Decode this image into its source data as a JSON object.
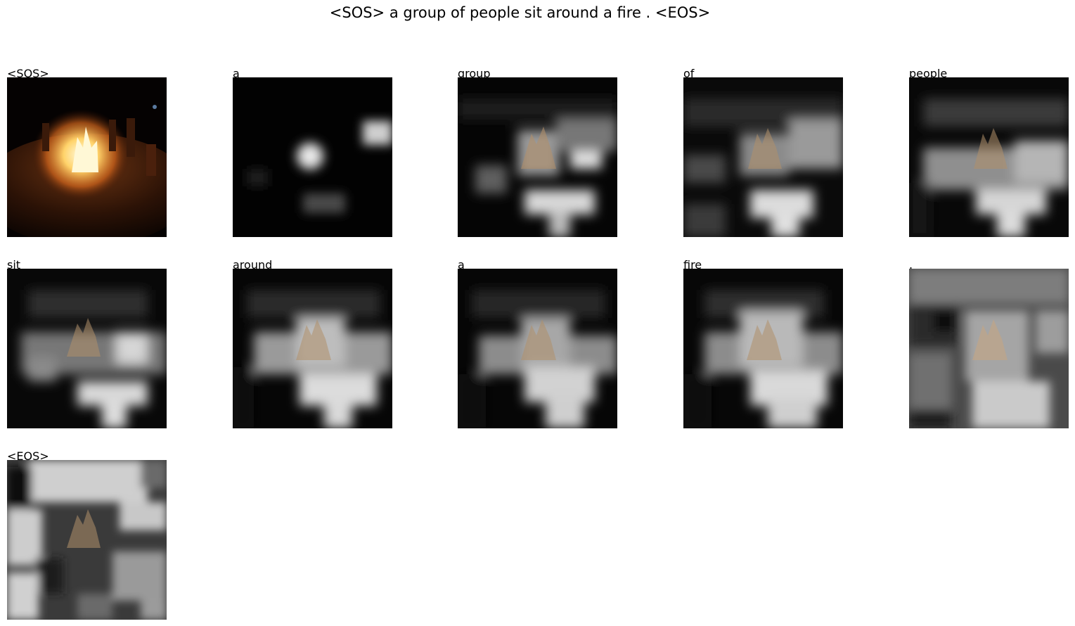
{
  "figure_title": "<SOS> a group of people sit around a fire . <EOS>",
  "panels": [
    {
      "label": "<SOS>"
    },
    {
      "label": "a"
    },
    {
      "label": "group"
    },
    {
      "label": "of"
    },
    {
      "label": "people"
    },
    {
      "label": "sit"
    },
    {
      "label": "around"
    },
    {
      "label": "a"
    },
    {
      "label": "fire"
    },
    {
      "label": "."
    },
    {
      "label": "<EOS>"
    }
  ]
}
